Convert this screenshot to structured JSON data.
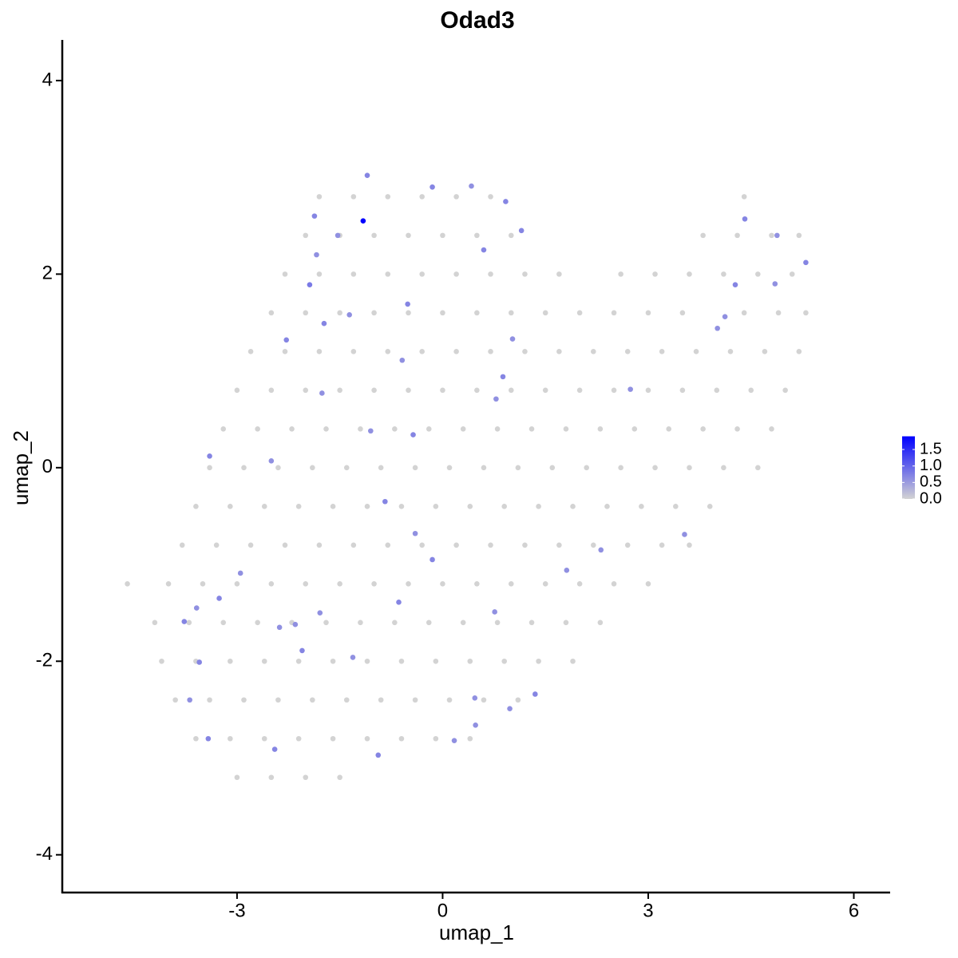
{
  "chart_data": {
    "type": "scatter",
    "title": "Odad3",
    "x_label": "umap_1",
    "y_label": "umap_2",
    "xlim": [
      -5.55,
      6.53
    ],
    "ylim": [
      -4.39,
      4.42
    ],
    "xticks": [
      -3,
      0,
      3,
      6
    ],
    "yticks": [
      -4,
      -2,
      0,
      2,
      4
    ],
    "colorbar": {
      "low": "#d3d3d3",
      "high": "#0000ff",
      "lim": [
        0,
        1.9
      ],
      "ticks": [
        {
          "value": 0,
          "label": "0.0"
        },
        {
          "value": 0.5,
          "label": "0.5"
        },
        {
          "value": 1,
          "label": "1.0"
        },
        {
          "value": 1.5,
          "label": "1.5"
        }
      ]
    },
    "x": [
      -1.8,
      -1.3,
      -0.8,
      -0.3,
      0.2,
      0.7,
      4.4,
      -2.0,
      -1.5,
      -1.0,
      -0.5,
      0,
      0.5,
      1.0,
      3.8,
      4.3,
      4.8,
      5.2,
      -2.3,
      -1.8,
      -1.3,
      -0.8,
      -0.3,
      0.2,
      0.7,
      1.2,
      1.7,
      2.6,
      3.1,
      3.6,
      4.1,
      4.6,
      5.1,
      -2.5,
      -2.0,
      -1.5,
      -1.0,
      -0.5,
      0,
      0.5,
      1.0,
      1.5,
      2.0,
      2.5,
      3.0,
      3.5,
      4.4,
      4.9,
      5.3,
      -2.8,
      -2.3,
      -1.8,
      -1.3,
      -0.8,
      -0.3,
      0.2,
      0.7,
      1.2,
      1.7,
      2.2,
      2.7,
      3.2,
      3.7,
      4.2,
      4.7,
      5.2,
      -3.0,
      -2.5,
      -2.0,
      -1.5,
      -1.0,
      -0.5,
      0,
      0.5,
      1.0,
      1.5,
      2.0,
      2.5,
      3.0,
      3.5,
      4.0,
      4.5,
      5.0,
      -3.2,
      -2.7,
      -2.2,
      -1.7,
      -1.2,
      -0.7,
      -0.2,
      0.3,
      0.8,
      1.3,
      1.8,
      2.3,
      2.8,
      3.3,
      3.8,
      4.3,
      4.8,
      -3.4,
      -2.9,
      -2.4,
      -1.9,
      -1.4,
      -0.9,
      -0.4,
      0.1,
      0.6,
      1.1,
      1.6,
      2.1,
      2.6,
      3.1,
      3.6,
      4.1,
      4.6,
      -3.6,
      -3.1,
      -2.6,
      -2.1,
      -1.6,
      -1.1,
      -0.6,
      -0.1,
      0.4,
      0.9,
      1.4,
      1.9,
      2.4,
      2.9,
      3.4,
      3.9,
      -3.8,
      -3.3,
      -2.8,
      -2.3,
      -1.8,
      -1.3,
      -0.8,
      -0.3,
      0.2,
      0.7,
      1.2,
      1.7,
      2.2,
      2.7,
      3.2,
      3.6,
      -4.6,
      -4.0,
      -3.5,
      -3.0,
      -2.5,
      -2.0,
      -1.5,
      -1.0,
      -0.5,
      0,
      0.5,
      1.0,
      1.5,
      2.0,
      2.5,
      3.0,
      -4.2,
      -3.7,
      -3.2,
      -2.7,
      -2.2,
      -1.7,
      -1.2,
      -0.7,
      -0.2,
      0.3,
      0.8,
      1.3,
      1.8,
      2.3,
      -4.1,
      -3.6,
      -3.1,
      -2.6,
      -2.1,
      -1.6,
      -1.1,
      -0.6,
      -0.1,
      0.4,
      0.9,
      1.4,
      1.9,
      -3.9,
      -3.4,
      -2.9,
      -2.4,
      -1.9,
      -1.4,
      -0.9,
      -0.4,
      0.1,
      0.6,
      1.1,
      -3.6,
      -3.1,
      -2.6,
      -2.1,
      -1.6,
      -1.1,
      -0.6,
      -0.1,
      0.4,
      -3.0,
      -2.5,
      -2.0,
      -1.5,
      -1.1,
      -0.15,
      0.42,
      0.92,
      -1.87,
      -1.53,
      -1.84,
      0.6,
      1.15,
      -1.94,
      -1.36,
      -0.51,
      -1.73,
      -2.28,
      1.02,
      -0.59,
      0.88,
      -1.76,
      0.78,
      -1.05,
      -0.43,
      2.74,
      -3.4,
      -2.5,
      -0.84,
      -0.4,
      -0.15,
      3.53,
      2.31,
      1.81,
      -2.95,
      -3.26,
      -3.59,
      -3.77,
      -1.79,
      -0.64,
      0.76,
      -2.15,
      -2.38,
      -2.05,
      -1.31,
      -3.55,
      -3.69,
      1.35,
      0.47,
      0.98,
      -3.42,
      0.48,
      0.17,
      -2.45,
      -0.94,
      4.41,
      4.88,
      5.3,
      4.85,
      4.27,
      4.12,
      4.01,
      -1.16
    ],
    "y": [
      2.8,
      2.8,
      2.8,
      2.8,
      2.8,
      2.8,
      2.8,
      2.4,
      2.4,
      2.4,
      2.4,
      2.4,
      2.4,
      2.4,
      2.4,
      2.4,
      2.4,
      2.4,
      2.0,
      2.0,
      2.0,
      2.0,
      2.0,
      2.0,
      2.0,
      2.0,
      2.0,
      2.0,
      2.0,
      2.0,
      2.0,
      2.0,
      2.0,
      1.6,
      1.6,
      1.6,
      1.6,
      1.6,
      1.6,
      1.6,
      1.6,
      1.6,
      1.6,
      1.6,
      1.6,
      1.6,
      1.6,
      1.6,
      1.6,
      1.2,
      1.2,
      1.2,
      1.2,
      1.2,
      1.2,
      1.2,
      1.2,
      1.2,
      1.2,
      1.2,
      1.2,
      1.2,
      1.2,
      1.2,
      1.2,
      1.2,
      0.8,
      0.8,
      0.8,
      0.8,
      0.8,
      0.8,
      0.8,
      0.8,
      0.8,
      0.8,
      0.8,
      0.8,
      0.8,
      0.8,
      0.8,
      0.8,
      0.8,
      0.4,
      0.4,
      0.4,
      0.4,
      0.4,
      0.4,
      0.4,
      0.4,
      0.4,
      0.4,
      0.4,
      0.4,
      0.4,
      0.4,
      0.4,
      0.4,
      0.4,
      0,
      0,
      0,
      0,
      0,
      0,
      0,
      0,
      0,
      0,
      0,
      0,
      0,
      0,
      0,
      0,
      0,
      -0.4,
      -0.4,
      -0.4,
      -0.4,
      -0.4,
      -0.4,
      -0.4,
      -0.4,
      -0.4,
      -0.4,
      -0.4,
      -0.4,
      -0.4,
      -0.4,
      -0.4,
      -0.4,
      -0.8,
      -0.8,
      -0.8,
      -0.8,
      -0.8,
      -0.8,
      -0.8,
      -0.8,
      -0.8,
      -0.8,
      -0.8,
      -0.8,
      -0.8,
      -0.8,
      -0.8,
      -0.8,
      -1.2,
      -1.2,
      -1.2,
      -1.2,
      -1.2,
      -1.2,
      -1.2,
      -1.2,
      -1.2,
      -1.2,
      -1.2,
      -1.2,
      -1.2,
      -1.2,
      -1.2,
      -1.2,
      -1.6,
      -1.6,
      -1.6,
      -1.6,
      -1.6,
      -1.6,
      -1.6,
      -1.6,
      -1.6,
      -1.6,
      -1.6,
      -1.6,
      -1.6,
      -1.6,
      -2.0,
      -2.0,
      -2.0,
      -2.0,
      -2.0,
      -2.0,
      -2.0,
      -2.0,
      -2.0,
      -2.0,
      -2.0,
      -2.0,
      -2.0,
      -2.4,
      -2.4,
      -2.4,
      -2.4,
      -2.4,
      -2.4,
      -2.4,
      -2.4,
      -2.4,
      -2.4,
      -2.4,
      -2.8,
      -2.8,
      -2.8,
      -2.8,
      -2.8,
      -2.8,
      -2.8,
      -2.8,
      -2.8,
      -3.2,
      -3.2,
      -3.2,
      -3.2,
      3.02,
      2.9,
      2.91,
      2.75,
      2.6,
      2.4,
      2.2,
      2.25,
      2.45,
      1.89,
      1.58,
      1.69,
      1.49,
      1.32,
      1.33,
      1.11,
      0.94,
      0.77,
      0.71,
      0.38,
      0.34,
      0.81,
      0.12,
      0.07,
      -0.35,
      -0.68,
      -0.95,
      -0.69,
      -0.85,
      -1.06,
      -1.09,
      -1.35,
      -1.45,
      -1.59,
      -1.5,
      -1.39,
      -1.49,
      -1.62,
      -1.65,
      -1.89,
      -1.96,
      -2.01,
      -2.4,
      -2.34,
      -2.38,
      -2.49,
      -2.8,
      -2.66,
      -2.82,
      -2.91,
      -2.97,
      2.57,
      2.4,
      2.12,
      1.9,
      1.89,
      1.56,
      1.44,
      2.55
    ],
    "values": [
      0,
      0,
      0,
      0,
      0,
      0,
      0,
      0,
      0,
      0,
      0,
      0,
      0,
      0,
      0,
      0,
      0,
      0,
      0,
      0,
      0,
      0,
      0,
      0,
      0,
      0,
      0,
      0,
      0,
      0,
      0,
      0,
      0,
      0,
      0,
      0,
      0,
      0,
      0,
      0,
      0,
      0,
      0,
      0,
      0,
      0,
      0,
      0,
      0,
      0,
      0,
      0,
      0,
      0,
      0,
      0,
      0,
      0,
      0,
      0,
      0,
      0,
      0,
      0,
      0,
      0,
      0,
      0,
      0,
      0,
      0,
      0,
      0,
      0,
      0,
      0,
      0,
      0,
      0,
      0,
      0,
      0,
      0,
      0,
      0,
      0,
      0,
      0,
      0,
      0,
      0,
      0,
      0,
      0,
      0,
      0,
      0,
      0,
      0,
      0,
      0,
      0,
      0,
      0,
      0,
      0,
      0,
      0,
      0,
      0,
      0,
      0,
      0,
      0,
      0,
      0,
      0,
      0,
      0,
      0,
      0,
      0,
      0,
      0,
      0,
      0,
      0,
      0,
      0,
      0,
      0,
      0,
      0,
      0,
      0,
      0,
      0,
      0,
      0,
      0,
      0,
      0,
      0,
      0,
      0,
      0,
      0,
      0,
      0,
      0,
      0,
      0,
      0,
      0,
      0,
      0,
      0,
      0,
      0,
      0,
      0,
      0,
      0,
      0,
      0,
      0,
      0,
      0,
      0,
      0,
      0,
      0,
      0,
      0,
      0,
      0,
      0,
      0,
      0,
      0,
      0,
      0,
      0,
      0,
      0,
      0,
      0,
      0,
      0,
      0,
      0,
      0,
      0,
      0,
      0,
      0,
      0,
      0,
      0,
      0,
      0,
      0,
      0,
      0,
      0,
      0,
      0,
      0,
      0,
      0,
      0,
      0,
      0,
      0,
      0,
      0,
      0.7,
      0.7,
      0.6,
      0.7,
      0.7,
      0.6,
      0.6,
      0.7,
      0.7,
      0.8,
      0.6,
      0.7,
      0.7,
      0.7,
      0.6,
      0.6,
      0.7,
      0.6,
      0.6,
      0.6,
      0.7,
      0.6,
      0.7,
      0.6,
      0.7,
      0.6,
      0.7,
      0.6,
      0.6,
      0.6,
      0.6,
      0.7,
      0.6,
      0.7,
      0.6,
      0.7,
      0.6,
      0.6,
      0.6,
      0.7,
      0.6,
      0.7,
      0.6,
      0.7,
      0.6,
      0.6,
      0.7,
      0.6,
      0.6,
      0.7,
      0.7,
      0.7,
      0.6,
      0.7,
      0.6,
      0.7,
      0.6,
      0.6,
      1.9
    ]
  }
}
